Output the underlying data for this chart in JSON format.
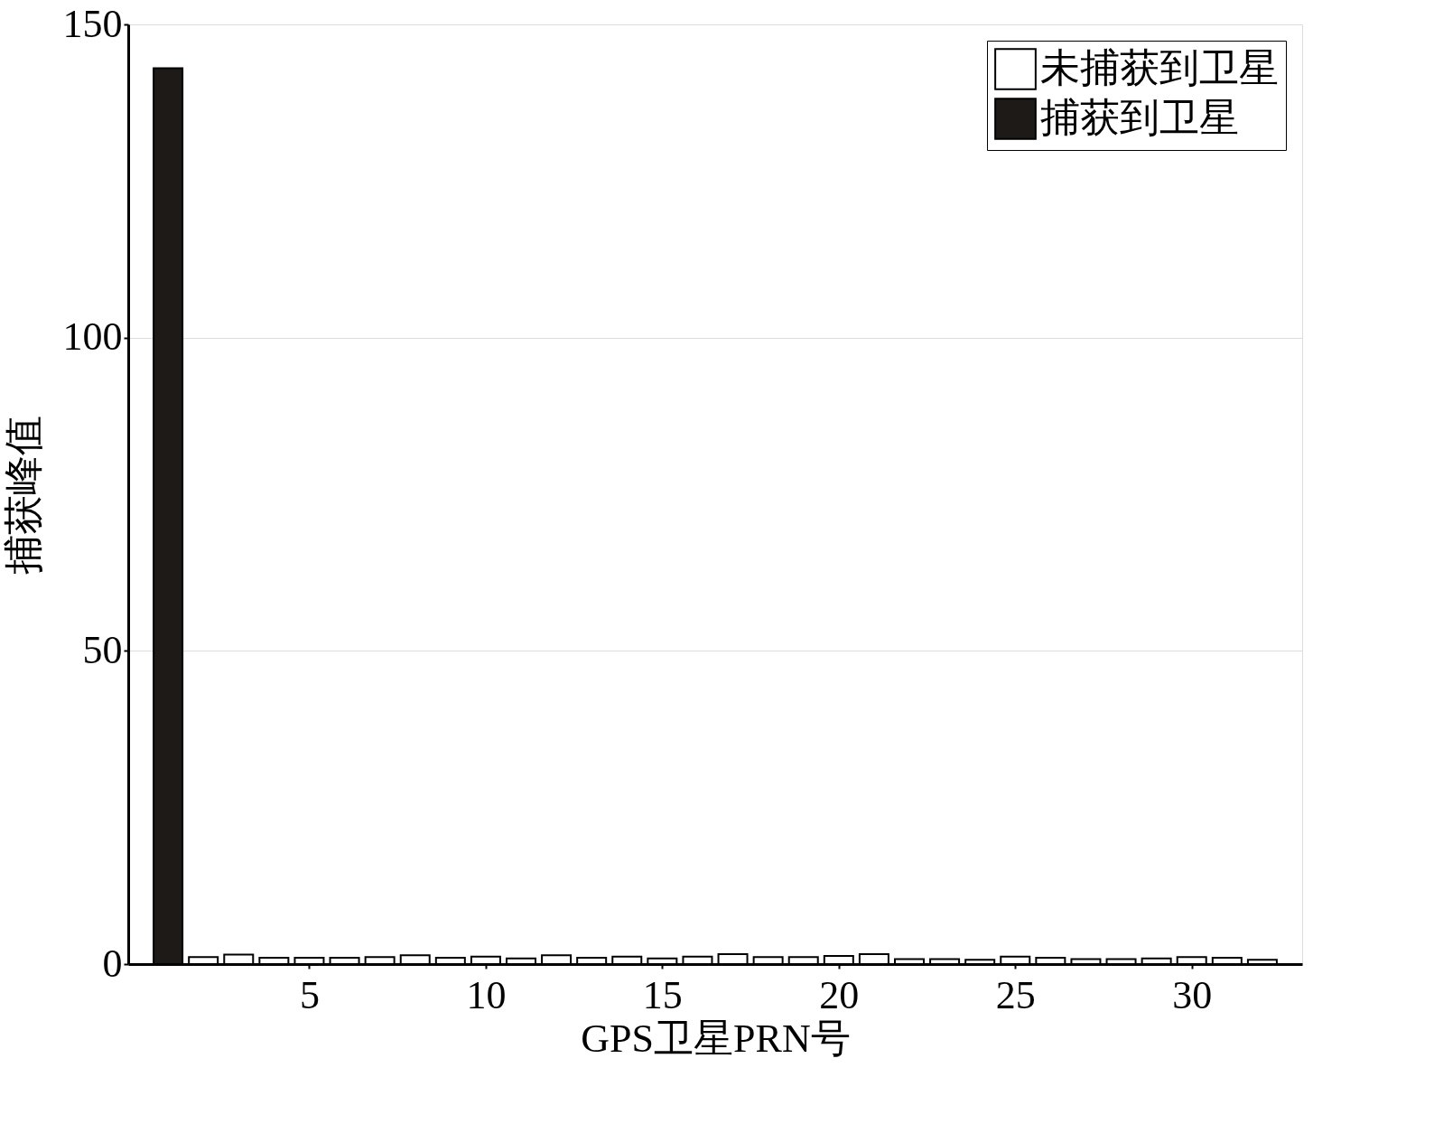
{
  "chart_data": {
    "type": "bar",
    "xlabel": "GPS卫星PRN号",
    "ylabel": "捕获峰值",
    "series": [
      {
        "name": "未捕获到卫星",
        "color": "#ffffff",
        "x": [
          2,
          3,
          4,
          5,
          6,
          7,
          8,
          9,
          10,
          11,
          12,
          13,
          14,
          15,
          16,
          17,
          18,
          19,
          20,
          21,
          22,
          23,
          24,
          25,
          26,
          27,
          28,
          29,
          30,
          31,
          32
        ],
        "values": [
          1.1,
          1.5,
          1.0,
          1.0,
          1.0,
          1.1,
          1.4,
          1.0,
          1.2,
          0.9,
          1.4,
          1.0,
          1.2,
          0.9,
          1.2,
          1.6,
          1.1,
          1.1,
          1.3,
          1.6,
          0.8,
          0.8,
          0.7,
          1.2,
          1.0,
          0.8,
          0.8,
          0.9,
          1.1,
          1.0,
          0.7
        ]
      },
      {
        "name": "捕获到卫星",
        "color": "#1e1a17",
        "x": [
          1
        ],
        "values": [
          143
        ]
      }
    ],
    "xlim": [
      0,
      33
    ],
    "xticks": [
      5,
      10,
      15,
      20,
      25,
      30
    ],
    "ylim": [
      0,
      150
    ],
    "yticks": [
      0,
      50,
      100,
      150
    ],
    "grid": "y",
    "legend": "top right"
  }
}
